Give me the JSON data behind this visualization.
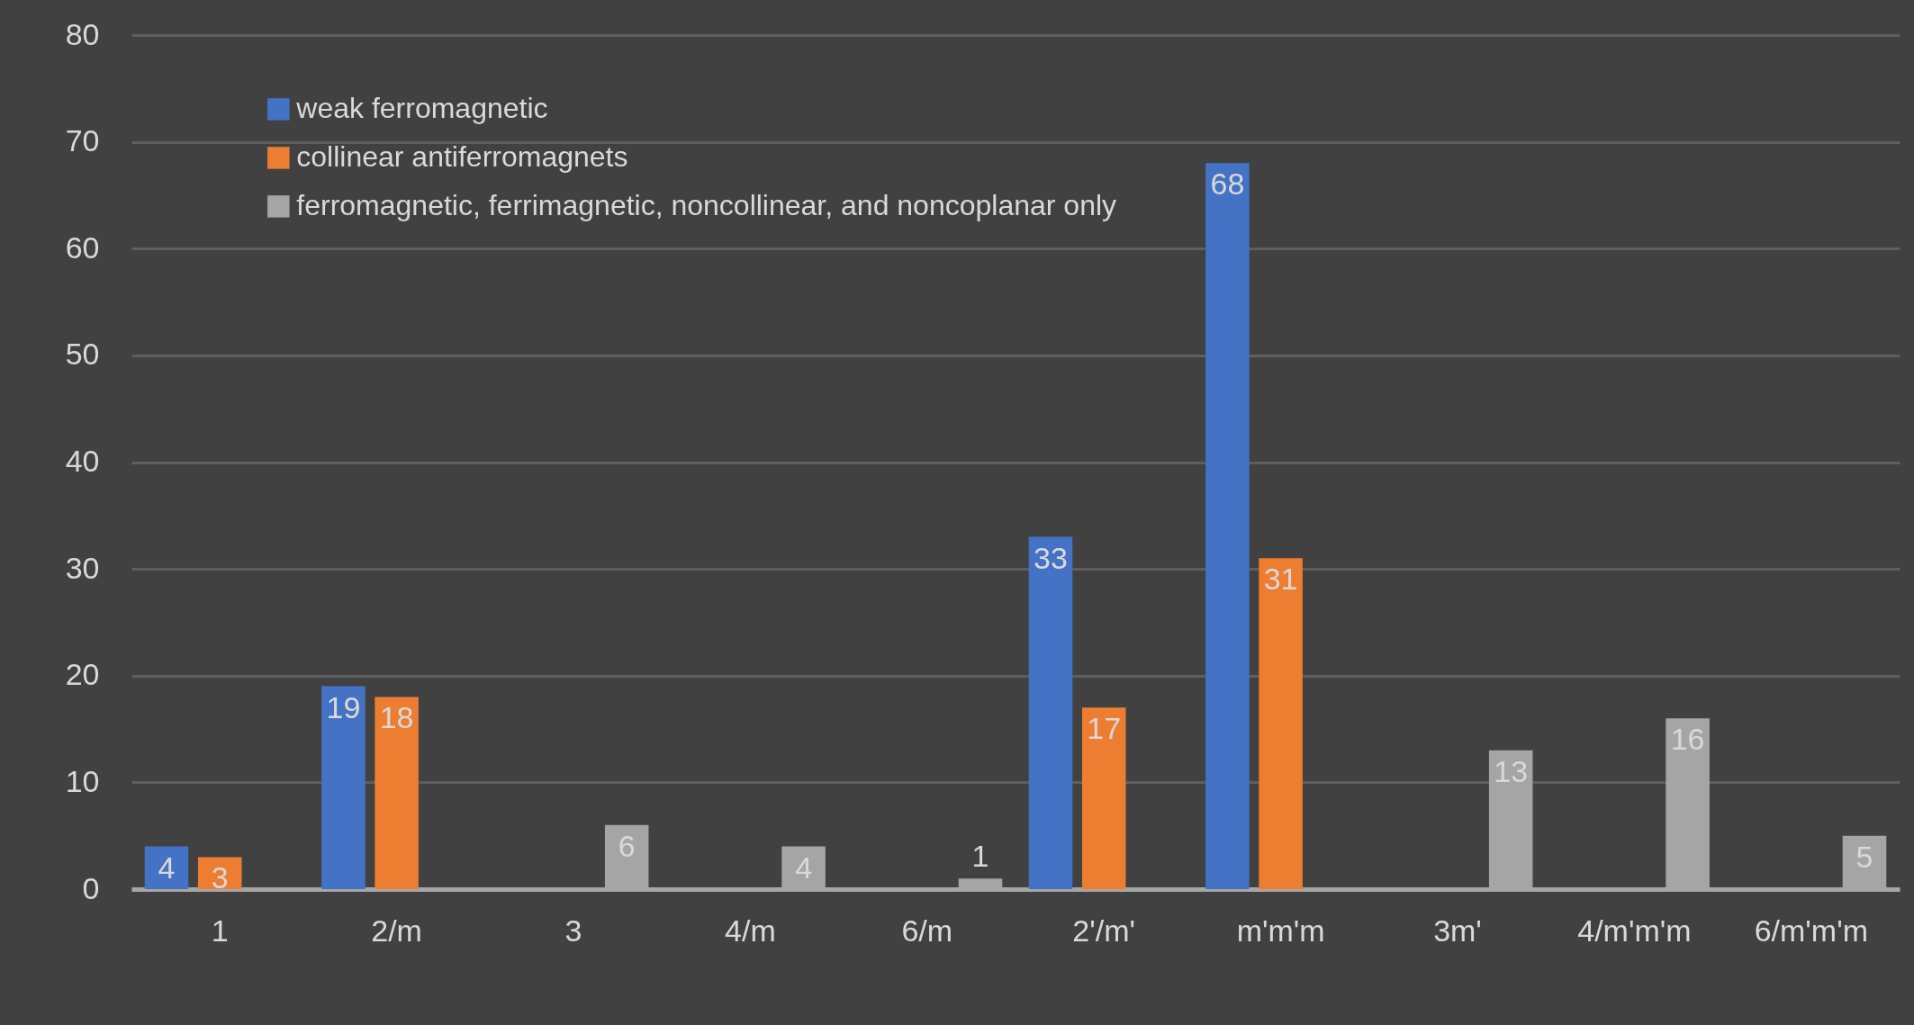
{
  "chart_data": {
    "type": "bar",
    "categories": [
      "1",
      "2/m",
      "3",
      "4/m",
      "6/m",
      "2'/m'",
      "m'm'm",
      "3m'",
      "4/m'm'm",
      "6/m'm'm"
    ],
    "series": [
      {
        "name": "weak ferromagnetic",
        "color": "#4472c4",
        "values": [
          4,
          19,
          null,
          null,
          null,
          33,
          68,
          null,
          null,
          null
        ]
      },
      {
        "name": "collinear antiferromagnets",
        "color": "#ed7d31",
        "values": [
          3,
          18,
          null,
          null,
          null,
          17,
          31,
          null,
          null,
          null
        ]
      },
      {
        "name": "ferromagnetic, ferrimagnetic, noncollinear, and noncoplanar only",
        "color": "#a5a5a5",
        "values": [
          null,
          null,
          6,
          4,
          1,
          null,
          null,
          13,
          16,
          5
        ]
      }
    ],
    "ylim": [
      0,
      80
    ],
    "yticks": [
      0,
      10,
      20,
      30,
      40,
      50,
      60,
      70,
      80
    ],
    "grid": "y",
    "legend": "top left",
    "data_labels": true
  }
}
